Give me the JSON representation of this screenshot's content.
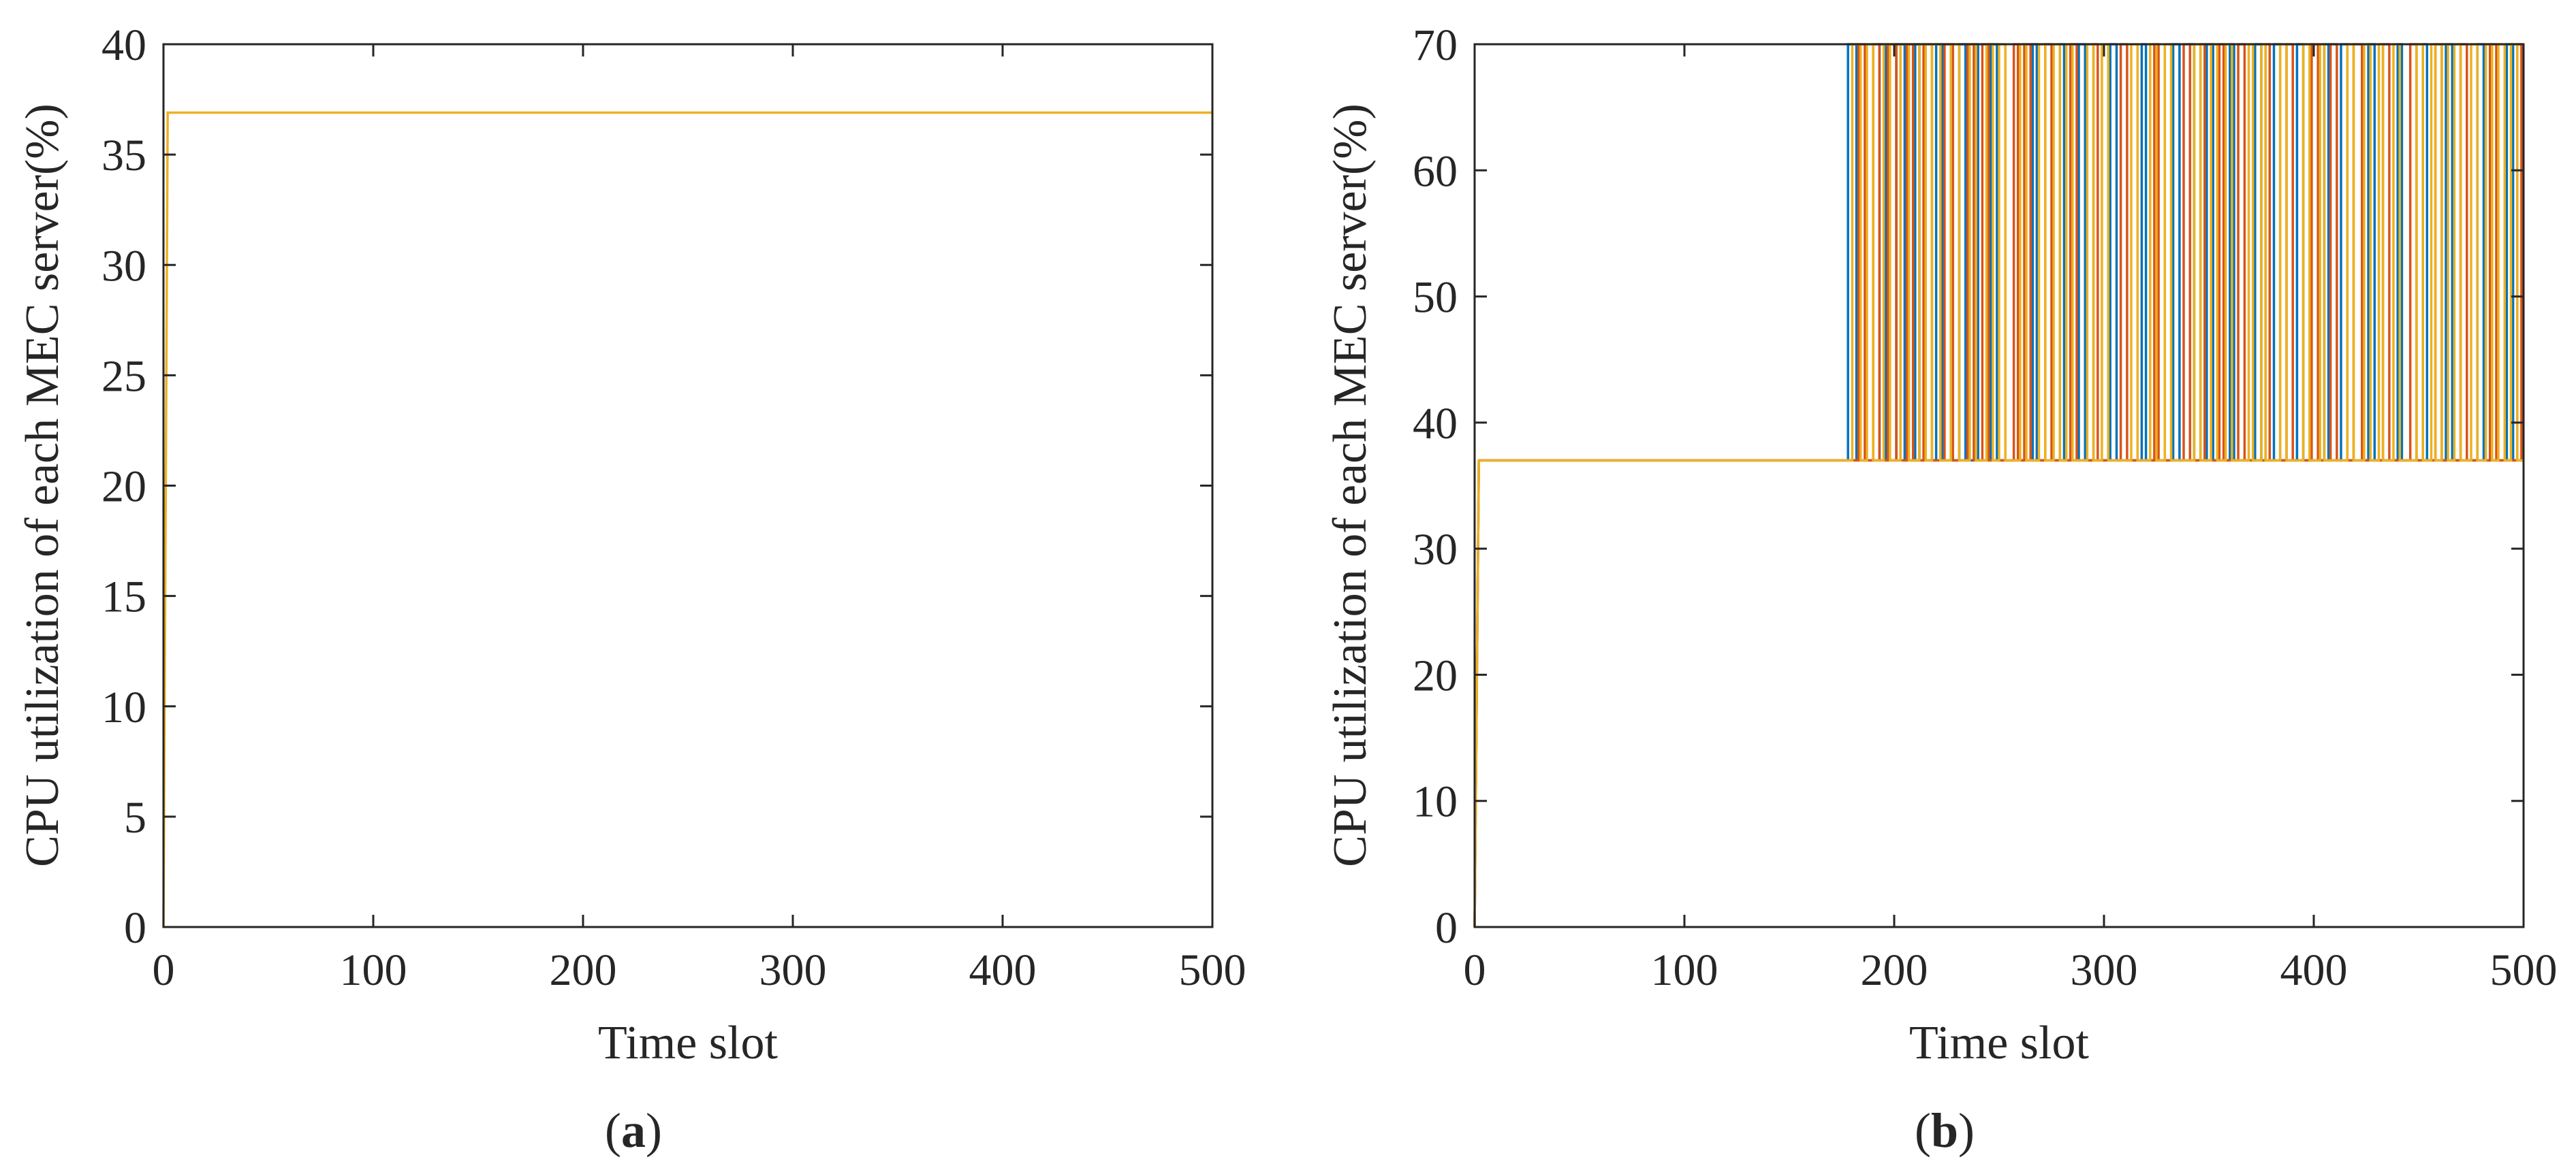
{
  "colors": {
    "series_blue": "#0072BD",
    "series_orange": "#D95319",
    "series_yellow": "#EDB120",
    "axis": "#262626"
  },
  "chart_data": [
    {
      "type": "line",
      "panel": {
        "open": "(",
        "letter": "a",
        "close": ")"
      },
      "xlabel": "Time slot",
      "ylabel": "CPU utilization of each MEC server(%)",
      "xlim": [
        0,
        500
      ],
      "ylim": [
        0,
        40
      ],
      "xticks": [
        0,
        100,
        200,
        300,
        400,
        500
      ],
      "yticks": [
        0,
        5,
        10,
        15,
        20,
        25,
        30,
        35,
        40
      ],
      "xtick_labels": [
        "0",
        "100",
        "200",
        "300",
        "400",
        "500"
      ],
      "ytick_labels": [
        "0",
        "5",
        "10",
        "15",
        "20",
        "25",
        "30",
        "35",
        "40"
      ],
      "grid": false,
      "series": [
        {
          "color": "#EDB120",
          "x": [
            0,
            2,
            500
          ],
          "y": [
            0,
            36.9,
            36.9
          ]
        }
      ]
    },
    {
      "type": "line",
      "panel": {
        "open": "(",
        "letter": "b",
        "close": ")"
      },
      "xlabel": "Time slot",
      "ylabel": "CPU utilization of each MEC server(%)",
      "xlim": [
        0,
        500
      ],
      "ylim": [
        0,
        70
      ],
      "xticks": [
        0,
        100,
        200,
        300,
        400,
        500
      ],
      "yticks": [
        0,
        10,
        20,
        30,
        40,
        50,
        60,
        70
      ],
      "xtick_labels": [
        "0",
        "100",
        "200",
        "300",
        "400",
        "500"
      ],
      "ytick_labels": [
        "0",
        "10",
        "20",
        "30",
        "40",
        "50",
        "60",
        "70"
      ],
      "grid": false,
      "baseline": 37,
      "peak": 70,
      "series": [
        {
          "color": "#0072BD",
          "x": [
            0,
            2,
            176
          ],
          "y": [
            0,
            37,
            37
          ],
          "pulses": [
            [
              178,
              182
            ],
            [
              193,
              196
            ],
            [
              201,
              205
            ],
            [
              210,
              212
            ],
            [
              220,
              223
            ],
            [
              231,
              234
            ],
            [
              238,
              240
            ],
            [
              246,
              249
            ],
            [
              266,
              268
            ],
            [
              279,
              281
            ],
            [
              288,
              291
            ],
            [
              303,
              306
            ],
            [
              318,
              320
            ],
            [
              333,
              336
            ],
            [
              341,
              343
            ],
            [
              349,
              352
            ],
            [
              360,
              362
            ],
            [
              372,
              375
            ],
            [
              381,
              384
            ],
            [
              392,
              395
            ],
            [
              405,
              407
            ],
            [
              413,
              416
            ],
            [
              426,
              429
            ],
            [
              440,
              442
            ],
            [
              452,
              454
            ],
            [
              463,
              466
            ],
            [
              478,
              481
            ],
            [
              492,
              495
            ]
          ]
        },
        {
          "color": "#D95319",
          "x": [
            0,
            2,
            176
          ],
          "y": [
            0,
            37,
            37
          ],
          "pulses": [
            [
              183,
              186
            ],
            [
              190,
              193
            ],
            [
              197,
              201
            ],
            [
              206,
              209
            ],
            [
              214,
              218
            ],
            [
              224,
              228
            ],
            [
              235,
              238
            ],
            [
              242,
              245
            ],
            [
              257,
              259
            ],
            [
              262,
              265
            ],
            [
              272,
              275
            ],
            [
              284,
              287
            ],
            [
              295,
              297
            ],
            [
              308,
              311
            ],
            [
              324,
              326
            ],
            [
              338,
              341
            ],
            [
              346,
              348
            ],
            [
              355,
              357
            ],
            [
              364,
              367
            ],
            [
              377,
              379
            ],
            [
              387,
              390
            ],
            [
              399,
              402
            ],
            [
              408,
              411
            ],
            [
              419,
              423
            ],
            [
              433,
              436
            ],
            [
              446,
              449
            ],
            [
              458,
              461
            ],
            [
              470,
              473
            ],
            [
              484,
              487
            ],
            [
              497,
              499
            ]
          ]
        },
        {
          "color": "#EDB120",
          "x": [
            0,
            2,
            176
          ],
          "y": [
            0,
            37,
            37
          ],
          "pulses": [
            [
              180,
              184
            ],
            [
              187,
              190
            ],
            [
              195,
              198
            ],
            [
              203,
              207
            ],
            [
              212,
              215
            ],
            [
              218,
              222
            ],
            [
              227,
              231
            ],
            [
              236,
              239
            ],
            [
              244,
              247
            ],
            [
              250,
              253
            ],
            [
              260,
              263
            ],
            [
              269,
              272
            ],
            [
              276,
              279
            ],
            [
              282,
              285
            ],
            [
              292,
              295
            ],
            [
              299,
              302
            ],
            [
              313,
              316
            ],
            [
              322,
              325
            ],
            [
              329,
              332
            ],
            [
              343,
              346
            ],
            [
              351,
              354
            ],
            [
              358,
              361
            ],
            [
              369,
              371
            ],
            [
              375,
              377
            ],
            [
              384,
              387
            ],
            [
              395,
              398
            ],
            [
              403,
              405
            ],
            [
              416,
              419
            ],
            [
              424,
              427
            ],
            [
              431,
              433
            ],
            [
              438,
              441
            ],
            [
              449,
              452
            ],
            [
              456,
              458
            ],
            [
              461,
              464
            ],
            [
              467,
              470
            ],
            [
              475,
              478
            ],
            [
              482,
              485
            ],
            [
              488,
              491
            ],
            [
              494,
              497
            ]
          ]
        }
      ]
    }
  ]
}
